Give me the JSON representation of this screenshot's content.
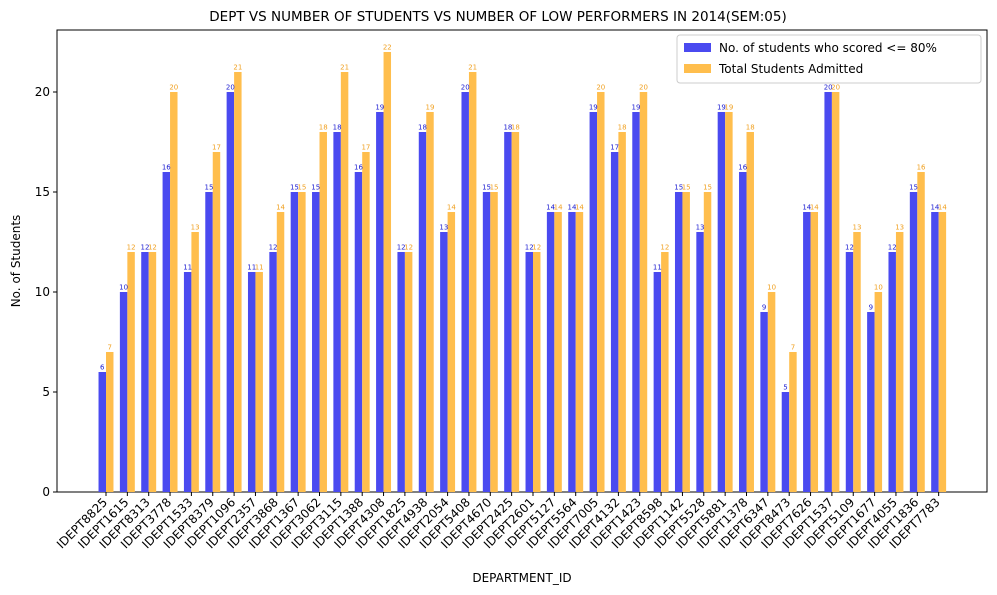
{
  "chart_data": {
    "type": "bar",
    "title": "DEPT VS NUMBER OF STUDENTS VS NUMBER OF LOW PERFORMERS IN 2014(SEM:05)",
    "xlabel": "DEPARTMENT_ID",
    "ylabel": "No. of Students",
    "ylim": [
      0,
      23.1
    ],
    "yticks": [
      0,
      5,
      10,
      15,
      20
    ],
    "legend_position": "top-right",
    "grid": false,
    "categories": [
      "IDEPT8825",
      "IDEPT1615",
      "IDEPT8313",
      "IDEPT3778",
      "IDEPT1533",
      "IDEPT8379",
      "IDEPT1096",
      "IDEPT2357",
      "IDEPT3868",
      "IDEPT1367",
      "IDEPT3062",
      "IDEPT3115",
      "IDEPT1388",
      "IDEPT4308",
      "IDEPT1825",
      "IDEPT4938",
      "IDEPT2054",
      "IDEPT5408",
      "IDEPT4670",
      "IDEPT2425",
      "IDEPT2601",
      "IDEPT5127",
      "IDEPT5564",
      "IDEPT7005",
      "IDEPT4132",
      "IDEPT1423",
      "IDEPT8598",
      "IDEPT1142",
      "IDEPT5528",
      "IDEPT5881",
      "IDEPT1378",
      "IDEPT6347",
      "IDEPT8473",
      "IDEPT7626",
      "IDEPT1537",
      "IDEPT5109",
      "IDEPT1677",
      "IDEPT4055",
      "IDEPT1836",
      "IDEPT7783"
    ],
    "series": [
      {
        "name": "No. of students who scored <= 80%",
        "color": "#4a4af0",
        "values": [
          6,
          10,
          12,
          16,
          11,
          15,
          20,
          11,
          12,
          15,
          15,
          18,
          16,
          19,
          12,
          18,
          13,
          20,
          15,
          18,
          12,
          14,
          14,
          19,
          17,
          19,
          11,
          15,
          13,
          19,
          16,
          9,
          5,
          14,
          20,
          12,
          9,
          12,
          15,
          14
        ]
      },
      {
        "name": "Total Students Admitted",
        "color": "#ffbe4d",
        "values": [
          7,
          12,
          12,
          20,
          13,
          17,
          21,
          11,
          14,
          15,
          18,
          21,
          17,
          22,
          12,
          19,
          14,
          21,
          15,
          18,
          12,
          14,
          14,
          20,
          18,
          20,
          12,
          15,
          15,
          19,
          18,
          10,
          7,
          14,
          20,
          13,
          10,
          13,
          16,
          14
        ]
      }
    ]
  }
}
